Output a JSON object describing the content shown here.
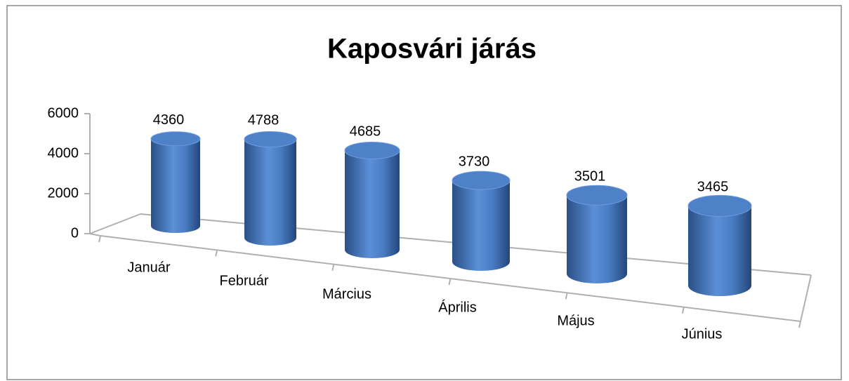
{
  "chart_data": {
    "type": "bar",
    "title": "Kaposvári járás",
    "categories": [
      "Január",
      "Február",
      "Március",
      "Április",
      "Május",
      "Június"
    ],
    "values": [
      4360,
      4788,
      4685,
      3730,
      3501,
      3465
    ],
    "color": "#4f81bd",
    "ylim": [
      0,
      6000
    ],
    "yticks": [
      0,
      2000,
      4000,
      6000
    ]
  }
}
